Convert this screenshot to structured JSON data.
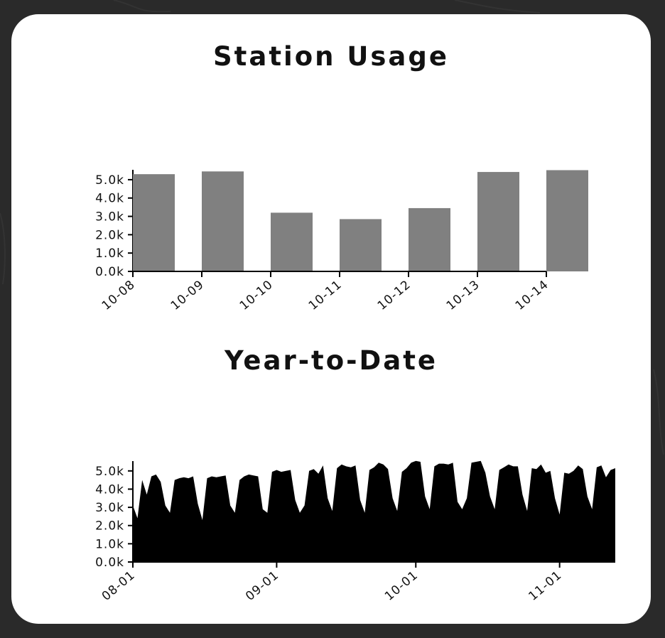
{
  "chart_data": [
    {
      "type": "bar",
      "title": "Station Usage",
      "categories": [
        "10-08",
        "10-09",
        "10-10",
        "10-11",
        "10-12",
        "10-13",
        "10-14"
      ],
      "values": [
        5300,
        5450,
        3200,
        2850,
        3450,
        5420,
        5520
      ],
      "ylim": [
        0,
        5500
      ],
      "yticks": [
        "0.0k",
        "1.0k",
        "2.0k",
        "3.0k",
        "4.0k",
        "5.0k"
      ],
      "bar_color": "#808080",
      "grid": false
    },
    {
      "type": "area",
      "title": "Year-to-Date",
      "x_start": "08-01",
      "x_end": "11-09",
      "xticks": [
        "08-01",
        "09-01",
        "10-01",
        "11-01"
      ],
      "ylim": [
        0,
        5500
      ],
      "yticks": [
        "0.0k",
        "1.0k",
        "2.0k",
        "3.0k",
        "4.0k",
        "5.0k"
      ],
      "fill_color": "#000000",
      "grid": false,
      "values": [
        3100,
        2400,
        4500,
        3700,
        4700,
        4800,
        4400,
        3100,
        2700,
        4500,
        4600,
        4650,
        4600,
        4700,
        3200,
        2300,
        4600,
        4700,
        4650,
        4700,
        4750,
        3100,
        2700,
        4500,
        4700,
        4800,
        4750,
        4700,
        2900,
        2700,
        4950,
        5050,
        4950,
        5000,
        5050,
        3400,
        2700,
        3100,
        5000,
        5100,
        4850,
        5300,
        3500,
        2800,
        5150,
        5350,
        5250,
        5200,
        5300,
        3400,
        2700,
        5050,
        5200,
        5450,
        5350,
        5100,
        3500,
        2800,
        4950,
        5150,
        5450,
        5550,
        5500,
        3600,
        2900,
        5250,
        5400,
        5400,
        5350,
        5450,
        3300,
        2900,
        3500,
        5450,
        5500,
        5550,
        4900,
        3600,
        2900,
        5050,
        5200,
        5350,
        5250,
        5250,
        3700,
        2800,
        5150,
        5100,
        5350,
        4900,
        5000,
        3500,
        2600,
        4900,
        4850,
        5000,
        5300,
        5100,
        3600,
        2900,
        5200,
        5300,
        4650,
        5050,
        5150
      ]
    }
  ]
}
